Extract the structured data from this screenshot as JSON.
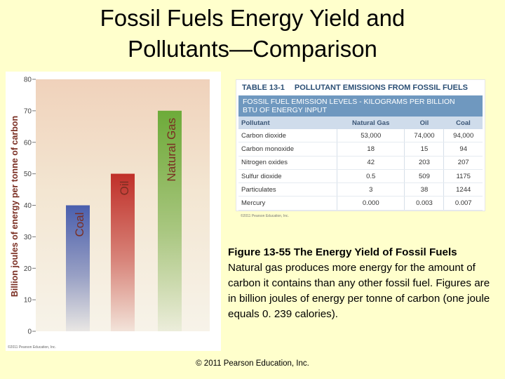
{
  "slide": {
    "title_line1": "Fossil Fuels Energy Yield and",
    "title_line2": "Pollutants—Comparison",
    "footer": "© 2011 Pearson Education, Inc."
  },
  "chart_data": {
    "type": "bar",
    "title": "",
    "ylabel": "Billion joules of energy per tonne of carbon",
    "ylim": [
      0,
      80
    ],
    "yticks": [
      0,
      10,
      20,
      30,
      40,
      50,
      60,
      70,
      80
    ],
    "categories": [
      "Coal",
      "Oil",
      "Natural Gas"
    ],
    "values": [
      40,
      50,
      70
    ],
    "colors": [
      "#4a5fae",
      "#c0302a",
      "#6dab3a"
    ],
    "grid": false,
    "credit": "©2011 Pearson Education, Inc."
  },
  "table": {
    "number": "TABLE 13-1",
    "title": "POLLUTANT EMISSIONS FROM FOSSIL FUELS",
    "subtitle_line1": "FOSSIL FUEL EMISSION LEVELS - KILOGRAMS PER BILLION",
    "subtitle_line2": "BTU OF ENERGY INPUT",
    "columns": [
      "Pollutant",
      "Natural Gas",
      "Oil",
      "Coal"
    ],
    "rows": [
      [
        "Carbon dioxide",
        "53,000",
        "74,000",
        "94,000"
      ],
      [
        "Carbon monoxide",
        "18",
        "15",
        "94"
      ],
      [
        "Nitrogen oxides",
        "42",
        "203",
        "207"
      ],
      [
        "Sulfur dioxide",
        "0.5",
        "509",
        "1175"
      ],
      [
        "Particulates",
        "3",
        "38",
        "1244"
      ],
      [
        "Mercury",
        "0.000",
        "0.003",
        "0.007"
      ]
    ],
    "credit": "©2011 Pearson Education, Inc."
  },
  "caption": {
    "title": "Figure 13-55  The Energy Yield of Fossil Fuels",
    "body": "Natural gas produces more energy for the amount of carbon it contains than any other fossil fuel. Figures are in billion joules of energy per tonne of carbon (one joule equals 0. 239 calories)."
  }
}
